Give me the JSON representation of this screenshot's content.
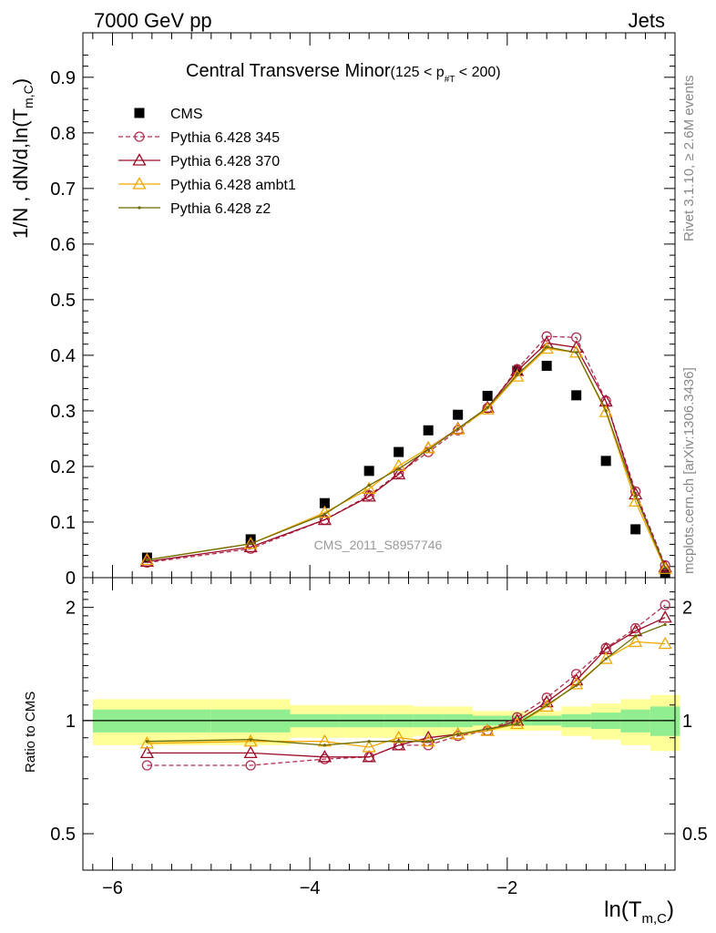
{
  "header": {
    "left": "7000 GeV pp",
    "right": "Jets"
  },
  "side_labels": {
    "rivet": "Rivet 3.1.10, ≥ 2.6M events",
    "mcplots": "mcplots.cern.ch [arXiv:1306.3436]"
  },
  "watermark": "CMS_2011_S8957746",
  "colors": {
    "cms": "#000000",
    "p345": "#b03050",
    "p370": "#9b0c28",
    "ambt1": "#f0a800",
    "z2": "#6b6b00",
    "band_inner": "#90ee90",
    "band_outer": "#ffff99"
  },
  "chart_data": [
    {
      "type": "line",
      "title": "Central Transverse Minor",
      "title_suffix": "(125 < p",
      "title_sub": "#T",
      "title_suffix2": " < 200)",
      "ylabel": "1/N , dN/d,ln(T",
      "ylabel_sub": "m,C",
      "ylabel_end": ")",
      "xlim": [
        -6.3,
        -0.3
      ],
      "ylim": [
        0,
        0.98
      ],
      "y_ticks": [
        "0",
        "0.1",
        "0.2",
        "0.3",
        "0.4",
        "0.5",
        "0.6",
        "0.7",
        "0.8",
        "0.9"
      ],
      "legend_position": "top-left",
      "x": [
        -5.65,
        -4.6,
        -3.85,
        -3.4,
        -3.1,
        -2.8,
        -2.5,
        -2.2,
        -1.9,
        -1.6,
        -1.3,
        -1.0,
        -0.7,
        -0.4
      ],
      "series": [
        {
          "name": "CMS",
          "key": "cms",
          "marker": "square",
          "values": [
            0.036,
            0.069,
            0.134,
            0.192,
            0.226,
            0.265,
            0.293,
            0.327,
            0.372,
            0.381,
            0.328,
            0.21,
            0.087,
            0.008
          ]
        },
        {
          "name": "Pythia 6.428 345",
          "key": "p345",
          "marker": "circle",
          "dashed": true,
          "values": [
            0.027,
            0.052,
            0.104,
            0.148,
            0.188,
            0.226,
            0.265,
            0.305,
            0.375,
            0.434,
            0.432,
            0.318,
            0.155,
            0.022
          ]
        },
        {
          "name": "Pythia 6.428 370",
          "key": "p370",
          "marker": "triangle",
          "values": [
            0.029,
            0.055,
            0.104,
            0.146,
            0.186,
            0.233,
            0.268,
            0.306,
            0.372,
            0.422,
            0.414,
            0.317,
            0.15,
            0.019
          ]
        },
        {
          "name": "Pythia 6.428 ambt1",
          "key": "ambt1",
          "marker": "triangle",
          "values": [
            0.032,
            0.061,
            0.117,
            0.16,
            0.201,
            0.233,
            0.267,
            0.303,
            0.362,
            0.412,
            0.405,
            0.298,
            0.137,
            0.016
          ]
        },
        {
          "name": "Pythia 6.428 z2",
          "key": "z2",
          "marker": "dot",
          "values": [
            0.032,
            0.061,
            0.114,
            0.166,
            0.196,
            0.23,
            0.268,
            0.306,
            0.365,
            0.415,
            0.405,
            0.3,
            0.147,
            0.018
          ]
        }
      ]
    },
    {
      "type": "line",
      "ylabel": "Ratio to CMS",
      "xlabel": "ln(T",
      "xlabel_sub": "m,C",
      "xlabel_end": ")",
      "xlim": [
        -6.3,
        -0.3
      ],
      "ylim": [
        0.4,
        2.4
      ],
      "y_scale": "log",
      "y_ticks": [
        "0.5",
        "1",
        "2"
      ],
      "x_ticks": [
        "−6",
        "−4",
        "−2"
      ],
      "x_tick_values": [
        -6,
        -4,
        -2
      ],
      "x": [
        -5.65,
        -4.6,
        -3.85,
        -3.4,
        -3.1,
        -2.8,
        -2.5,
        -2.2,
        -1.9,
        -1.6,
        -1.3,
        -1.0,
        -0.7,
        -0.4
      ],
      "bin_edges": [
        -6.2,
        -5.0,
        -4.2,
        -3.7,
        -3.25,
        -2.95,
        -2.65,
        -2.35,
        -2.05,
        -1.75,
        -1.45,
        -1.15,
        -0.85,
        -0.55,
        -0.25
      ],
      "band_inner": [
        0.07,
        0.07,
        0.04,
        0.04,
        0.04,
        0.04,
        0.04,
        0.03,
        0.03,
        0.03,
        0.04,
        0.05,
        0.07,
        0.09
      ],
      "band_outer": [
        0.14,
        0.14,
        0.1,
        0.1,
        0.1,
        0.09,
        0.09,
        0.06,
        0.06,
        0.06,
        0.09,
        0.11,
        0.14,
        0.17
      ],
      "series": [
        {
          "name": "Pythia 6.428 345",
          "key": "p345",
          "marker": "circle",
          "dashed": true,
          "values": [
            0.76,
            0.76,
            0.79,
            0.8,
            0.86,
            0.86,
            0.91,
            0.94,
            1.02,
            1.15,
            1.33,
            1.56,
            1.76,
            2.03
          ]
        },
        {
          "name": "Pythia 6.428 370",
          "key": "p370",
          "marker": "triangle",
          "values": [
            0.82,
            0.82,
            0.8,
            0.8,
            0.86,
            0.9,
            0.92,
            0.94,
            1.0,
            1.12,
            1.28,
            1.55,
            1.73,
            1.88
          ]
        },
        {
          "name": "Pythia 6.428 ambt1",
          "key": "ambt1",
          "marker": "triangle",
          "values": [
            0.87,
            0.88,
            0.88,
            0.85,
            0.9,
            0.88,
            0.92,
            0.94,
            0.98,
            1.09,
            1.25,
            1.46,
            1.62,
            1.6
          ]
        },
        {
          "name": "Pythia 6.428 z2",
          "key": "z2",
          "marker": "dot",
          "values": [
            0.88,
            0.89,
            0.86,
            0.88,
            0.88,
            0.88,
            0.92,
            0.95,
            0.98,
            1.1,
            1.24,
            1.46,
            1.68,
            1.8
          ]
        }
      ]
    }
  ]
}
